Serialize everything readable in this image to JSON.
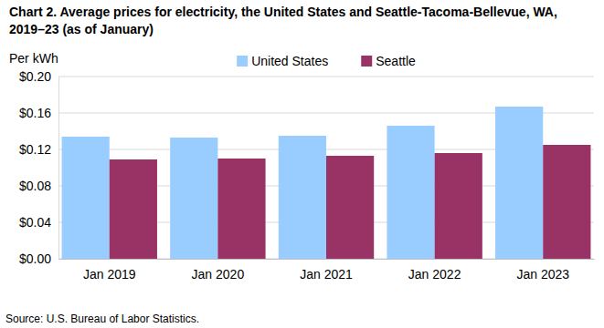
{
  "chart_data": {
    "type": "bar",
    "title": "Chart 2. Average prices for electricity, the United States and Seattle-Tacoma-Bellevue, WA, 2019–23 (as of January)",
    "y_label": "Per kWh",
    "source": "Source: U.S. Bureau of Labor Statistics.",
    "categories": [
      "Jan 2019",
      "Jan 2020",
      "Jan 2021",
      "Jan 2022",
      "Jan 2023"
    ],
    "series": [
      {
        "name": "United States",
        "color": "#99ccff",
        "values": [
          0.134,
          0.133,
          0.135,
          0.146,
          0.167
        ]
      },
      {
        "name": "Seattle",
        "color": "#993366",
        "values": [
          0.109,
          0.11,
          0.113,
          0.116,
          0.125
        ]
      }
    ],
    "ylim": [
      0,
      0.2
    ],
    "yticks": [
      {
        "value": 0,
        "label": "$0.00"
      },
      {
        "value": 0.04,
        "label": "$0.04"
      },
      {
        "value": 0.08,
        "label": "$0.08"
      },
      {
        "value": 0.12,
        "label": "$0.12"
      },
      {
        "value": 0.16,
        "label": "$0.16"
      },
      {
        "value": 0.2,
        "label": "$0.20"
      }
    ],
    "grid": true,
    "legend": "top"
  }
}
